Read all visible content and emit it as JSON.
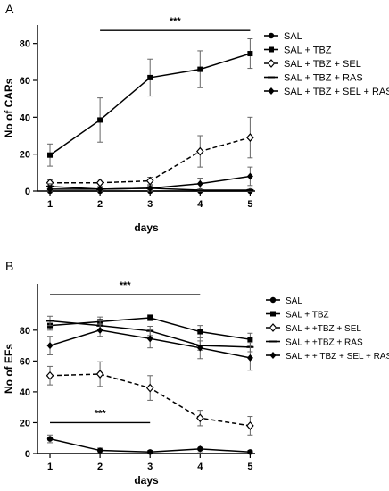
{
  "chart_data": [
    {
      "panel_label": "A",
      "type": "line",
      "ylabel": "No of CARs",
      "xlabel": "days",
      "x": [
        1,
        2,
        3,
        4,
        5
      ],
      "xlim": [
        0.75,
        5.1
      ],
      "ylim": [
        0,
        90
      ],
      "yticks": [
        0,
        20,
        40,
        60,
        80
      ],
      "legend_position": "right",
      "series": [
        {
          "name": "SAL",
          "values": [
            0,
            0,
            0,
            0,
            0
          ],
          "err": [
            0,
            0,
            0,
            0,
            0
          ],
          "dash": false,
          "marker": "filled-circle"
        },
        {
          "name": "SAL + TBZ",
          "values": [
            19.5,
            38.5,
            61.5,
            66,
            74.5
          ],
          "err": [
            6,
            12,
            10,
            10,
            8
          ],
          "dash": false,
          "marker": "filled-square"
        },
        {
          "name": "SAL + TBZ + SEL",
          "values": [
            4.5,
            4.5,
            5.5,
            21.5,
            29
          ],
          "err": [
            1.5,
            2,
            2,
            8.5,
            11
          ],
          "dash": true,
          "marker": "open-diamond"
        },
        {
          "name": "SAL + TBZ + RAS",
          "values": [
            2.5,
            1,
            1.5,
            0.5,
            0.5
          ],
          "err": [
            1.5,
            1,
            1,
            0.5,
            0.5
          ],
          "dash": false,
          "marker": "dash"
        },
        {
          "name": "SAL + TBZ + SEL + RAS",
          "values": [
            1,
            1,
            1.5,
            4,
            8
          ],
          "err": [
            1,
            1,
            1.5,
            3,
            5
          ],
          "dash": false,
          "marker": "filled-diamond"
        }
      ],
      "annotations": [
        {
          "text": "***",
          "x_from": 2,
          "x_to": 5,
          "y": 87
        }
      ]
    },
    {
      "panel_label": "B",
      "type": "line",
      "ylabel": "No of EFs",
      "xlabel": "days",
      "x": [
        1,
        2,
        3,
        4,
        5
      ],
      "xlim": [
        0.75,
        5.1
      ],
      "ylim": [
        0,
        110
      ],
      "yticks": [
        0,
        20,
        40,
        60,
        80
      ],
      "legend_position": "right",
      "series": [
        {
          "name": "SAL",
          "values": [
            9.5,
            2,
            1,
            3,
            1
          ],
          "err": [
            2.5,
            1.5,
            1,
            2.5,
            1
          ],
          "dash": false,
          "marker": "filled-circle"
        },
        {
          "name": "SAL + TBZ",
          "values": [
            83,
            85.5,
            88,
            79,
            74
          ],
          "err": [
            3,
            3,
            2,
            4,
            4
          ],
          "dash": false,
          "marker": "filled-square"
        },
        {
          "name": "SAL + +TBZ + SEL",
          "values": [
            50.5,
            51.5,
            42.5,
            23,
            18
          ],
          "err": [
            6,
            8,
            8,
            5,
            6
          ],
          "dash": true,
          "marker": "open-diamond"
        },
        {
          "name": "SAL + +TBZ + RAS",
          "values": [
            86,
            83,
            79.5,
            70,
            69
          ],
          "err": [
            3,
            3,
            3,
            3,
            3
          ],
          "dash": false,
          "marker": "dash"
        },
        {
          "name": "SAL + + TBZ + SEL + RAS",
          "values": [
            70,
            80,
            74.5,
            68.5,
            62
          ],
          "err": [
            6,
            4,
            6,
            7,
            8
          ],
          "dash": false,
          "marker": "filled-diamond"
        }
      ],
      "annotations": [
        {
          "text": "***",
          "x_from": 1,
          "x_to": 4,
          "y": 103
        },
        {
          "text": "***",
          "x_from": 1,
          "x_to": 3,
          "y": 20
        }
      ]
    }
  ]
}
